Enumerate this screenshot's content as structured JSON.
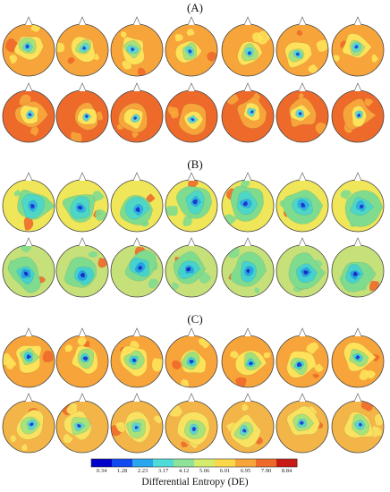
{
  "panels": [
    {
      "label": "(A)",
      "rows": [
        {
          "base": "#f7a53a",
          "blobs": [
            [
              "#fde25a",
              0.55
            ],
            [
              "#a8e07a",
              0.35
            ],
            [
              "#5fd7d0",
              0.2
            ],
            [
              "#1a55e0",
              0.08
            ]
          ],
          "variant": [
            1,
            2,
            3,
            4,
            5,
            6,
            7
          ]
        },
        {
          "base": "#ee6a2a",
          "blobs": [
            [
              "#f7a53a",
              0.6
            ],
            [
              "#fde25a",
              0.4
            ],
            [
              "#5fd7d0",
              0.18
            ],
            [
              "#2244d8",
              0.07
            ]
          ],
          "variant": [
            8,
            9,
            10,
            11,
            12,
            13,
            14
          ]
        }
      ]
    },
    {
      "label": "(B)",
      "rows": [
        {
          "base": "#f0e65a",
          "blobs": [
            [
              "#7fdc8f",
              0.72
            ],
            [
              "#4ed6c6",
              0.45
            ],
            [
              "#2fb0e8",
              0.22
            ],
            [
              "#1c3ad0",
              0.1
            ]
          ],
          "variant": [
            15,
            16,
            17,
            18,
            19,
            20,
            21
          ]
        },
        {
          "base": "#c6e07a",
          "blobs": [
            [
              "#7fdc8f",
              0.7
            ],
            [
              "#45d2cf",
              0.4
            ],
            [
              "#28a2e6",
              0.2
            ],
            [
              "#162fc8",
              0.09
            ]
          ],
          "variant": [
            22,
            23,
            24,
            25,
            26,
            27,
            28
          ]
        }
      ]
    },
    {
      "label": "(C)",
      "rows": [
        {
          "base": "#f7a53a",
          "blobs": [
            [
              "#fde25a",
              0.6
            ],
            [
              "#9fe07c",
              0.38
            ],
            [
              "#45d0d6",
              0.2
            ],
            [
              "#1a3fd8",
              0.09
            ]
          ],
          "variant": [
            29,
            30,
            31,
            32,
            33,
            34,
            35
          ]
        },
        {
          "base": "#f3b548",
          "blobs": [
            [
              "#f9e260",
              0.62
            ],
            [
              "#a7e27a",
              0.4
            ],
            [
              "#5dd4d2",
              0.2
            ],
            [
              "#2248d6",
              0.08
            ]
          ],
          "variant": [
            36,
            37,
            38,
            39,
            40,
            41,
            42
          ]
        }
      ]
    }
  ],
  "colorbar": {
    "title": "Differential Entropy (DE)",
    "ticks": [
      "0.34",
      "1.28",
      "2.23",
      "3.17",
      "4.12",
      "5.06",
      "6.01",
      "6.95",
      "7.90",
      "8.84"
    ],
    "colors": [
      "#0000c8",
      "#1248f0",
      "#2aa6ee",
      "#4fdcd8",
      "#8fe29a",
      "#d6ec6c",
      "#fbd84a",
      "#f7a53a",
      "#ee6a2a",
      "#c81a14"
    ]
  }
}
